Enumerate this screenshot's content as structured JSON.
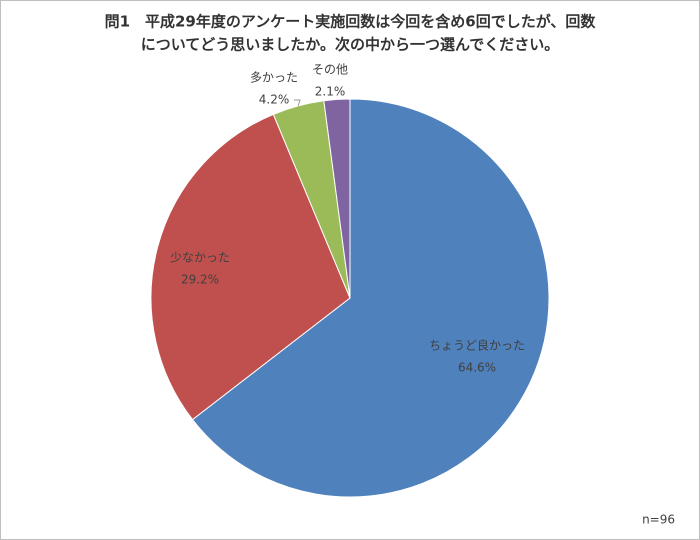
{
  "chart_data": {
    "type": "pie",
    "title_lines": [
      "問1　平成29年度のアンケート実施回数は今回を含め6回でしたが、回数",
      "についてどう思いましたか。次の中から一つ選んでください。"
    ],
    "categories": [
      "ちょうど良かった",
      "少なかった",
      "多かった",
      "その他"
    ],
    "values": [
      64.6,
      29.2,
      4.2,
      2.1
    ],
    "value_labels": [
      "64.6%",
      "29.2%",
      "4.2%",
      "2.1%"
    ],
    "colors": [
      "#4f81bd",
      "#c0504d",
      "#9bbb59",
      "#8064a2"
    ],
    "note": "n=96"
  }
}
